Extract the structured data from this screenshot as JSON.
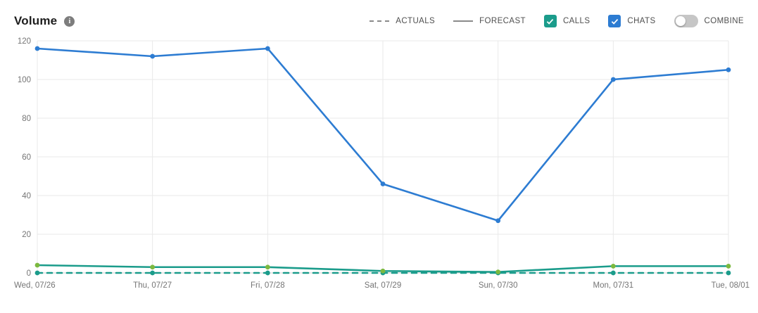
{
  "header": {
    "title": "Volume"
  },
  "legend": {
    "actuals_label": "ACTUALS",
    "forecast_label": "FORECAST",
    "calls_label": "CALLS",
    "chats_label": "CHATS",
    "combine_label": "COMBINE",
    "calls_checked": true,
    "chats_checked": true,
    "combine_on": false
  },
  "colors": {
    "chats": "#2d7cd2",
    "calls": "#1b9c8b",
    "calls_marker": "#7cb93f",
    "grid": "#e9e9e9",
    "axis_line": "#cfcfcf",
    "axis_text": "#757575",
    "legend_sample": "#8a8a8a"
  },
  "chart_data": {
    "type": "line",
    "title": "Volume",
    "x": [
      "Wed, 07/26",
      "Thu, 07/27",
      "Fri, 07/28",
      "Sat, 07/29",
      "Sun, 07/30",
      "Mon, 07/31",
      "Tue, 08/01"
    ],
    "series": [
      {
        "name": "CALLS ACTUALS",
        "style": "dashed",
        "color_key": "calls",
        "marker_color_key": "calls",
        "values": [
          0,
          0,
          0,
          0,
          0,
          0,
          0
        ]
      },
      {
        "name": "CALLS FORECAST",
        "style": "solid",
        "color_key": "calls",
        "marker_color_key": "calls_marker",
        "values": [
          4,
          3,
          3,
          1,
          0.5,
          3.5,
          3.5
        ]
      },
      {
        "name": "CHATS FORECAST",
        "style": "solid",
        "color_key": "chats",
        "marker_color_key": "chats",
        "values": [
          116,
          112,
          116,
          46,
          27,
          100,
          105
        ]
      }
    ],
    "ylim": [
      0,
      120
    ],
    "yticks": [
      0,
      20,
      40,
      60,
      80,
      100,
      120
    ],
    "grid": true,
    "legend_position": "top-right"
  }
}
